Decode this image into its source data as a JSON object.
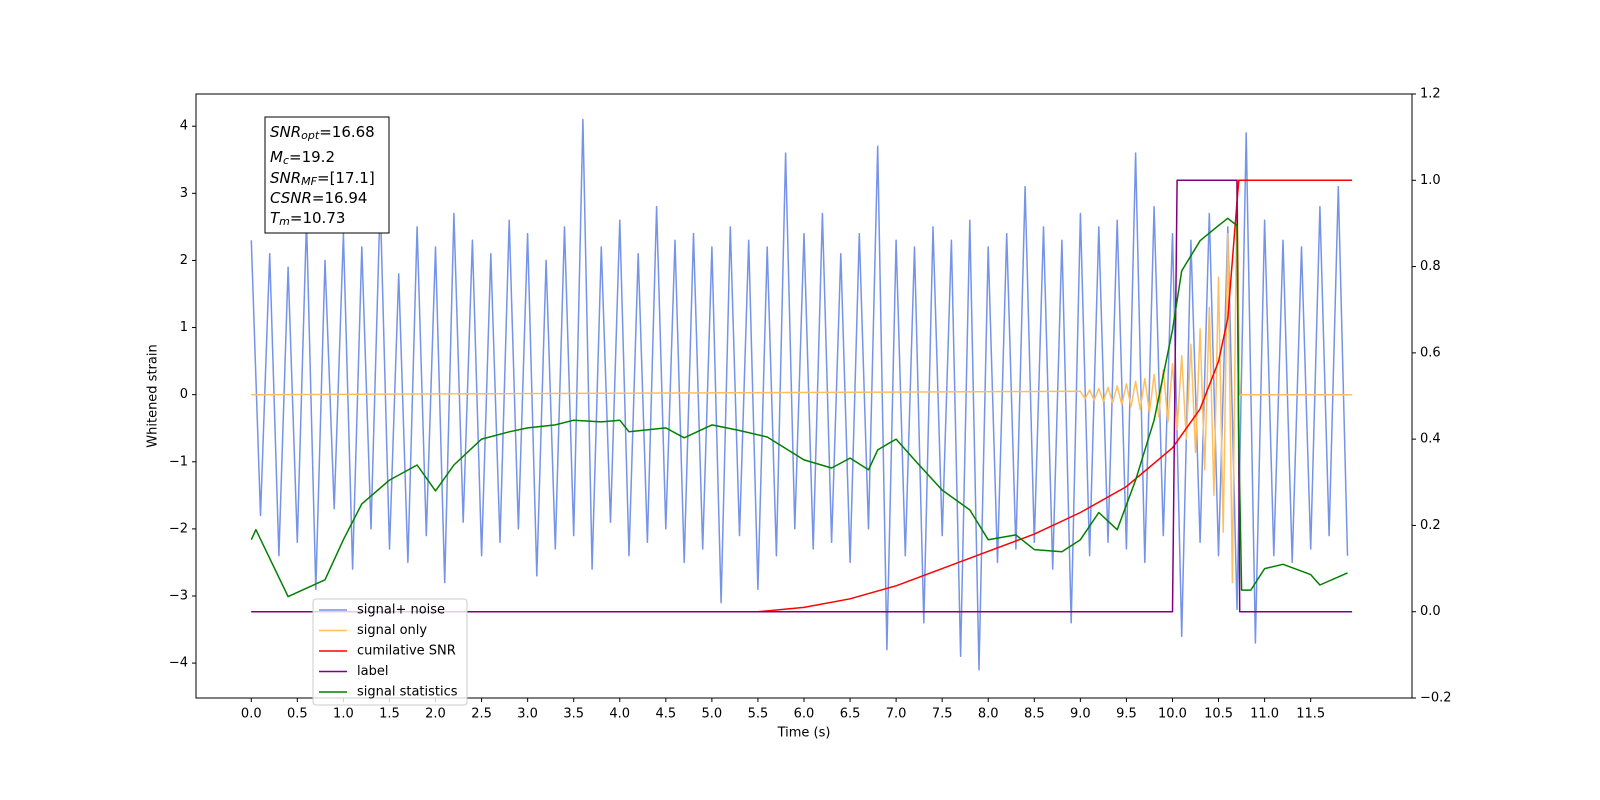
{
  "chart_data": {
    "type": "line",
    "xlabel": "Time (s)",
    "ylabel": "Whitened strain",
    "xlim": [
      -0.6,
      12.6
    ],
    "ylim": [
      -4.52,
      4.48
    ],
    "y2lim": [
      -0.2,
      1.2
    ],
    "xticks": [
      {
        "value": 0,
        "label": "0.0"
      },
      {
        "value": 0.5,
        "label": "0.5"
      },
      {
        "value": 1,
        "label": "1.0"
      },
      {
        "value": 1.5,
        "label": "1.5"
      },
      {
        "value": 2,
        "label": "2.0"
      },
      {
        "value": 2.5,
        "label": "2.5"
      },
      {
        "value": 3,
        "label": "3.0"
      },
      {
        "value": 3.5,
        "label": "3.5"
      },
      {
        "value": 4,
        "label": "4.0"
      },
      {
        "value": 4.5,
        "label": "4.5"
      },
      {
        "value": 5,
        "label": "5.0"
      },
      {
        "value": 5.5,
        "label": "5.5"
      },
      {
        "value": 6,
        "label": "6.0"
      },
      {
        "value": 6.5,
        "label": "6.5"
      },
      {
        "value": 7,
        "label": "7.0"
      },
      {
        "value": 7.5,
        "label": "7.5"
      },
      {
        "value": 8,
        "label": "8.0"
      },
      {
        "value": 8.5,
        "label": "8.5"
      },
      {
        "value": 9,
        "label": "9.0"
      },
      {
        "value": 9.5,
        "label": "9.5"
      },
      {
        "value": 10,
        "label": "10.0"
      },
      {
        "value": 10.5,
        "label": "10.5"
      },
      {
        "value": 11,
        "label": "11.0"
      },
      {
        "value": 11.5,
        "label": "11.5"
      }
    ],
    "yticks": [
      {
        "value": -4,
        "label": "−4"
      },
      {
        "value": -3,
        "label": "−3"
      },
      {
        "value": -2,
        "label": "−2"
      },
      {
        "value": -1,
        "label": "−1"
      },
      0,
      1,
      2,
      3,
      4
    ],
    "y2ticks": [
      {
        "value": -0.2,
        "label": "−0.2"
      },
      {
        "value": 0,
        "label": "0.0"
      },
      {
        "value": 0.2,
        "label": "0.2"
      },
      {
        "value": 0.4,
        "label": "0.4"
      },
      {
        "value": 0.6,
        "label": "0.6"
      },
      {
        "value": 0.8,
        "label": "0.8"
      },
      {
        "value": 1,
        "label": "1.0"
      },
      {
        "value": 1.2,
        "label": "1.2"
      }
    ],
    "legend": "lower left",
    "annotations": [
      {
        "name": "SNR",
        "sub": "opt",
        "text": "=16.68"
      },
      {
        "name": "M",
        "sub": "c",
        "text": "=19.2"
      },
      {
        "name": "SNR",
        "sub": "MF",
        "text": "=[17.1]"
      },
      {
        "name": "CSNR",
        "sub": "",
        "text": "=16.94"
      },
      {
        "name": "T",
        "sub": "m",
        "text": "=10.73"
      }
    ],
    "series": [
      {
        "name": "signal+ noise",
        "color": "#7593e8",
        "axis": "y",
        "x": [
          0,
          0.1,
          0.2,
          0.3,
          0.4,
          0.5,
          0.6,
          0.7,
          0.8,
          0.9,
          1,
          1.1,
          1.2,
          1.3,
          1.4,
          1.5,
          1.6,
          1.7,
          1.8,
          1.9,
          2,
          2.1,
          2.2,
          2.3,
          2.4,
          2.5,
          2.6,
          2.7,
          2.8,
          2.9,
          3,
          3.1,
          3.2,
          3.3,
          3.4,
          3.5,
          3.6,
          3.7,
          3.8,
          3.9,
          4,
          4.1,
          4.2,
          4.3,
          4.4,
          4.5,
          4.6,
          4.7,
          4.8,
          4.9,
          5,
          5.1,
          5.2,
          5.3,
          5.4,
          5.5,
          5.6,
          5.7,
          5.8,
          5.9,
          6,
          6.1,
          6.2,
          6.3,
          6.4,
          6.5,
          6.6,
          6.7,
          6.8,
          6.9,
          7,
          7.1,
          7.2,
          7.3,
          7.4,
          7.5,
          7.6,
          7.7,
          7.8,
          7.9,
          8,
          8.1,
          8.2,
          8.3,
          8.4,
          8.5,
          8.6,
          8.7,
          8.8,
          8.9,
          9,
          9.1,
          9.2,
          9.3,
          9.4,
          9.5,
          9.6,
          9.7,
          9.8,
          9.9,
          10,
          10.1,
          10.2,
          10.3,
          10.4,
          10.5,
          10.6,
          10.7,
          10.8,
          10.9,
          11,
          11.1,
          11.2,
          11.3,
          11.4,
          11.5,
          11.6,
          11.7,
          11.8,
          11.9
        ],
        "values": [
          2.3,
          -1.8,
          2.1,
          -2.4,
          1.9,
          -2.2,
          2.6,
          -2.9,
          2.0,
          -1.7,
          2.4,
          -2.6,
          2.2,
          -2.0,
          2.9,
          -2.3,
          1.8,
          -2.5,
          2.5,
          -2.1,
          2.2,
          -2.8,
          2.7,
          -1.9,
          2.3,
          -2.4,
          2.1,
          -2.2,
          2.6,
          -2.0,
          2.4,
          -2.7,
          2.0,
          -2.3,
          2.5,
          -2.1,
          4.1,
          -2.6,
          2.2,
          -1.9,
          2.6,
          -2.4,
          2.1,
          -2.2,
          2.8,
          -2.0,
          2.3,
          -2.5,
          2.4,
          -2.3,
          2.2,
          -3.1,
          2.5,
          -2.1,
          2.3,
          -2.9,
          2.2,
          -2.4,
          3.6,
          -2.0,
          2.4,
          -2.3,
          2.7,
          -2.2,
          2.1,
          -2.5,
          2.4,
          -2.0,
          3.7,
          -3.8,
          2.3,
          -2.4,
          2.2,
          -3.4,
          2.5,
          -2.1,
          2.3,
          -3.9,
          2.6,
          -4.1,
          2.2,
          -2.5,
          2.4,
          -2.3,
          3.1,
          -2.2,
          2.5,
          -2.6,
          2.3,
          -3.4,
          2.7,
          -2.4,
          2.5,
          -2.2,
          2.6,
          -2.3,
          3.6,
          -2.5,
          2.8,
          -2.1,
          2.4,
          -3.6,
          2.3,
          -2.2,
          2.7,
          -2.4,
          2.5,
          -3.2,
          3.9,
          -3.7,
          2.6,
          -2.4,
          2.3,
          -2.5,
          2.2,
          -2.3,
          2.8,
          -2.1,
          3.1,
          -2.4
        ]
      },
      {
        "name": "signal only",
        "color": "#ffbf60",
        "axis": "y",
        "x": [
          0,
          9,
          9.05,
          9.1,
          9.15,
          9.2,
          9.25,
          9.3,
          9.35,
          9.4,
          9.45,
          9.5,
          9.55,
          9.6,
          9.65,
          9.7,
          9.75,
          9.8,
          9.85,
          9.9,
          9.95,
          10,
          10.05,
          10.1,
          10.15,
          10.2,
          10.25,
          10.3,
          10.35,
          10.4,
          10.45,
          10.5,
          10.55,
          10.6,
          10.65,
          10.7,
          10.73,
          11.95
        ],
        "values": [
          0,
          0.05,
          -0.06,
          0.07,
          -0.08,
          0.09,
          -0.1,
          0.11,
          -0.12,
          0.13,
          -0.15,
          0.16,
          -0.18,
          0.2,
          -0.22,
          0.24,
          -0.27,
          0.3,
          -0.33,
          0.37,
          -0.41,
          0.46,
          -0.52,
          0.58,
          -0.66,
          0.75,
          -0.86,
          0.98,
          -1.12,
          1.3,
          -1.5,
          1.75,
          -2.05,
          2.4,
          -2.8,
          3.2,
          0,
          0
        ]
      },
      {
        "name": "cumilative SNR",
        "color": "#ff0000",
        "axis": "y2",
        "x": [
          0,
          5.5,
          6,
          6.5,
          7,
          7.5,
          8,
          8.5,
          9,
          9.5,
          10,
          10.3,
          10.5,
          10.6,
          10.7,
          10.72,
          11.95
        ],
        "values": [
          0,
          0,
          0.01,
          0.03,
          0.06,
          0.1,
          0.14,
          0.18,
          0.23,
          0.29,
          0.38,
          0.47,
          0.58,
          0.68,
          0.95,
          1,
          1
        ]
      },
      {
        "name": "label",
        "color": "#800080",
        "axis": "y2",
        "x": [
          0,
          10,
          10.05,
          10.7,
          10.73,
          11.95
        ],
        "values": [
          0,
          0,
          1,
          1,
          0,
          0
        ]
      },
      {
        "name": "signal statistics",
        "color": "#008000",
        "axis": "y2",
        "x": [
          0,
          0.05,
          0.4,
          0.8,
          1,
          1.2,
          1.5,
          1.8,
          2,
          2.2,
          2.5,
          2.8,
          3,
          3.3,
          3.5,
          3.8,
          4,
          4.1,
          4.5,
          4.7,
          5,
          5.3,
          5.6,
          6,
          6.3,
          6.5,
          6.7,
          6.8,
          7,
          7.2,
          7.5,
          7.8,
          8,
          8.3,
          8.5,
          8.8,
          9,
          9.2,
          9.4,
          9.6,
          9.8,
          10,
          10.1,
          10.3,
          10.5,
          10.6,
          10.7,
          10.72,
          10.75,
          10.85,
          11,
          11.2,
          11.5,
          11.6,
          11.9
        ],
        "values": [
          0.167,
          0.19,
          0.035,
          0.074,
          0.167,
          0.25,
          0.305,
          0.34,
          0.28,
          0.34,
          0.4,
          0.417,
          0.426,
          0.433,
          0.444,
          0.44,
          0.444,
          0.417,
          0.426,
          0.403,
          0.433,
          0.42,
          0.405,
          0.352,
          0.333,
          0.356,
          0.329,
          0.375,
          0.4,
          0.352,
          0.282,
          0.236,
          0.167,
          0.178,
          0.144,
          0.139,
          0.167,
          0.23,
          0.19,
          0.305,
          0.444,
          0.653,
          0.79,
          0.86,
          0.895,
          0.912,
          0.895,
          0.4,
          0.05,
          0.05,
          0.1,
          0.11,
          0.086,
          0.062,
          0.09
        ]
      }
    ]
  }
}
